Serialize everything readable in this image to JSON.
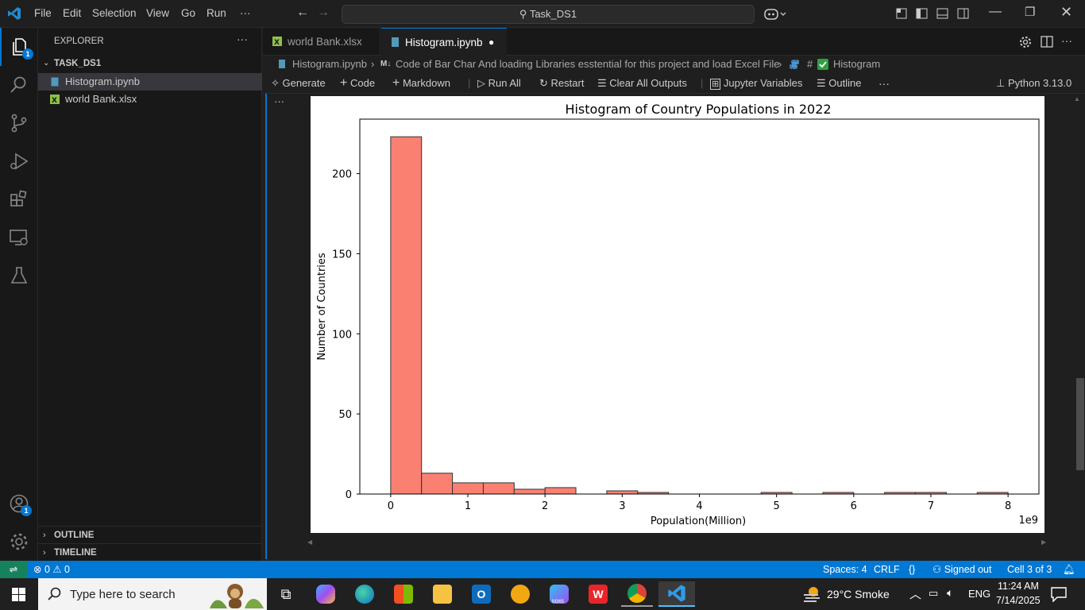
{
  "titlebar": {
    "menus": [
      "File",
      "Edit",
      "Selection",
      "View",
      "Go",
      "Run",
      "···"
    ],
    "search": "Task_DS1"
  },
  "activity": {
    "explorer_badge": "1",
    "accounts_badge": "1"
  },
  "sidebar": {
    "title": "EXPLORER",
    "folder": "TASK_DS1",
    "files": [
      {
        "name": "Histogram.ipynb",
        "icon": "notebook-icon"
      },
      {
        "name": "world Bank.xlsx",
        "icon": "excel-icon"
      }
    ],
    "outline": "OUTLINE",
    "timeline": "TIMELINE"
  },
  "tabs": [
    {
      "label": "world Bank.xlsx",
      "active": false
    },
    {
      "label": "Histogram.ipynb",
      "active": true,
      "modified": true
    }
  ],
  "breadcrumb": {
    "file": "Histogram.ipynb",
    "md_tag": "M↓",
    "section": "Code of Bar Char And loading Libraries esstential for this project and load Excel File",
    "hash": "#",
    "cell": "Histogram"
  },
  "toolbar": {
    "generate": "Generate",
    "code": "Code",
    "markdown": "Markdown",
    "run_all": "Run All",
    "restart": "Restart",
    "clear": "Clear All Outputs",
    "variables": "Jupyter Variables",
    "outline": "Outline",
    "more": "···",
    "kernel": "Python 3.13.0"
  },
  "cell": {
    "more": "···"
  },
  "chart_data": {
    "type": "bar",
    "title": "Histogram of Country Populations in 2022",
    "xlabel": "Population(Million)",
    "ylabel": "Number of Countries",
    "offset_label": "1e9",
    "bin_edges_e9": [
      0,
      0.4,
      0.8,
      1.2,
      1.6,
      2.0,
      2.4,
      2.8,
      3.2,
      3.6,
      4.0,
      4.4,
      4.8,
      5.2,
      5.6,
      6.0,
      6.4,
      6.8,
      7.2,
      7.6,
      8.0
    ],
    "values": [
      223,
      13,
      7,
      7,
      3,
      4,
      0,
      2,
      1,
      0,
      0,
      0,
      1,
      0,
      1,
      0,
      1,
      1,
      0,
      1
    ],
    "xlim": [
      -0.4,
      8.4
    ],
    "ylim": [
      0,
      234
    ],
    "xticks": [
      0,
      1,
      2,
      3,
      4,
      5,
      6,
      7,
      8
    ],
    "yticks": [
      0,
      50,
      100,
      150,
      200
    ],
    "bar_color": "#fa8072",
    "edge_color": "#333333",
    "grid": false
  },
  "statusbar": {
    "remote": "⇌",
    "problems": "⊗ 0 ⚠ 0",
    "spaces": "Spaces: 4",
    "eol": "CRLF",
    "braces": "{}",
    "signed": "Signed out",
    "cell": "Cell 3 of 3"
  },
  "taskbar": {
    "search_placeholder": "Type here to search",
    "weather": "29°C  Smoke",
    "lang": "ENG",
    "time": "11:24 AM",
    "date": "7/14/2025",
    "m365": "M365"
  },
  "colors": {
    "accent": "#0078d4",
    "bg": "#1f1f1f",
    "sidebar": "#181818"
  }
}
